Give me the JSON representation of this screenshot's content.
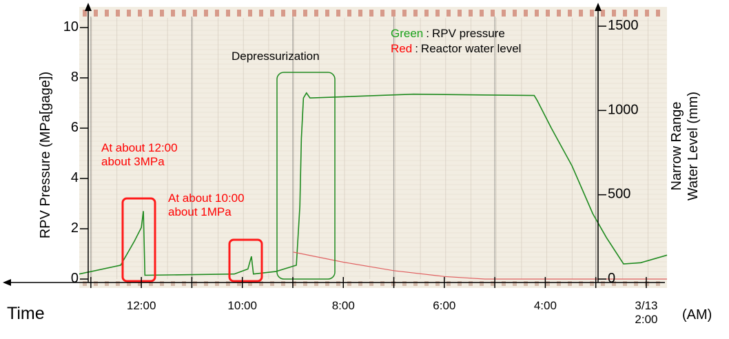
{
  "chart_data": {
    "type": "line",
    "x_label": "Time",
    "x_unit": "(AM)",
    "y_label": "RPV Pressure (MPa[gage])",
    "y2_label": "Narrow Range\nWater Level (mm)",
    "xlim": [
      13.23,
      1.59
    ],
    "xticks": [
      {
        "value": 12,
        "label": "12:00"
      },
      {
        "value": 10,
        "label": "10:00"
      },
      {
        "value": 8,
        "label": "8:00"
      },
      {
        "value": 6,
        "label": "6:00"
      },
      {
        "value": 4,
        "label": "4:00"
      },
      {
        "value": 2,
        "label": "3/13\n2:00"
      }
    ],
    "xminorticks": [
      13,
      11,
      9,
      7,
      5,
      3
    ],
    "ylim": [
      0,
      10
    ],
    "yticks": [
      0,
      2,
      4,
      6,
      8,
      10
    ],
    "y2lim": [
      0,
      1500
    ],
    "y2ticks": [
      0,
      500,
      1000,
      1500
    ],
    "legend_separator": ":",
    "series": [
      {
        "name": "RPV pressure",
        "legend_key": "Green",
        "color": "#1e8a1e",
        "x": [
          13.23,
          12.41,
          12.14,
          12.0,
          11.96,
          11.93,
          10.16,
          9.89,
          9.82,
          9.78,
          9.34,
          8.93,
          8.86,
          8.83,
          8.79,
          8.73,
          8.66,
          7.98,
          6.61,
          5.25,
          4.22,
          4.16,
          3.88,
          3.47,
          3.06,
          2.79,
          2.45,
          2.11,
          1.59
        ],
        "values": [
          0.2,
          0.55,
          1.5,
          2.05,
          2.7,
          0.15,
          0.2,
          0.4,
          0.9,
          0.2,
          0.3,
          0.55,
          2.9,
          5.6,
          7.2,
          7.4,
          7.2,
          7.25,
          7.35,
          7.32,
          7.3,
          7.1,
          6.0,
          4.5,
          2.6,
          1.65,
          0.6,
          0.65,
          0.95
        ]
      },
      {
        "name": "Reactor water level",
        "legend_key": "Red",
        "color": "#e06060",
        "axis": "y2",
        "x": [
          8.99,
          8.0,
          7.0,
          6.0,
          5.2,
          1.59
        ],
        "values": [
          160,
          100,
          50,
          15,
          0,
          0
        ]
      }
    ],
    "annotations": [
      {
        "text": "Depressurization",
        "color": "#000000"
      },
      {
        "text": "At about 12:00\nabout 3MPa",
        "color": "#ff0000"
      },
      {
        "text": "At about 10:00\nabout 1MPa",
        "color": "#ff0000"
      }
    ]
  }
}
